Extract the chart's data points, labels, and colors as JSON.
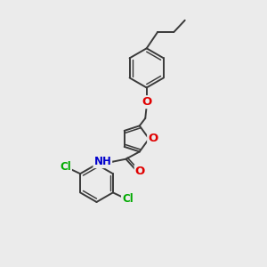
{
  "background_color": "#ebebeb",
  "bond_color": "#3a3a3a",
  "bond_width": 1.4,
  "atom_colors": {
    "O": "#e00000",
    "N": "#0000cc",
    "Cl": "#00aa00",
    "C": "#3a3a3a",
    "H": "#3a3a3a"
  },
  "font_size": 8.5,
  "fig_size": [
    3.0,
    3.0
  ],
  "dpi": 100
}
